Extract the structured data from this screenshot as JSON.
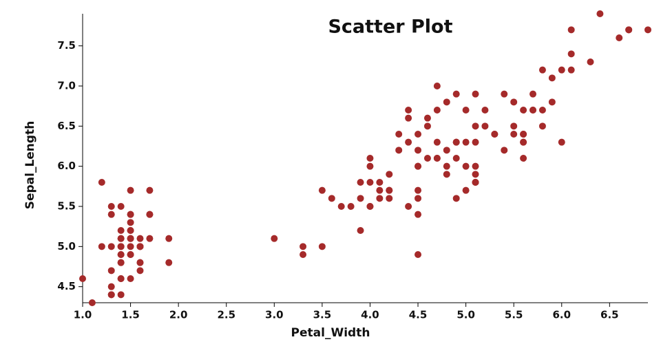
{
  "chart_data": {
    "type": "scatter",
    "title": "Scatter Plot",
    "x_label": "Petal_Width",
    "y_label": "Sepal_Length",
    "color": "#a52a2a",
    "series": [
      {
        "x": [
          1.4,
          1.4,
          1.3,
          1.5,
          1.4,
          1.7,
          1.4,
          1.5,
          1.4,
          1.5,
          1.5,
          1.6,
          1.4,
          1.1,
          1.2,
          1.5,
          1.3,
          1.4,
          1.7,
          1.5,
          1.7,
          1.5,
          1.0,
          1.7,
          1.9,
          1.6,
          1.6,
          1.5,
          1.4,
          1.6,
          1.6,
          1.5,
          1.5,
          1.4,
          1.5,
          1.2,
          1.3,
          1.4,
          1.3,
          1.5,
          1.3,
          1.3,
          1.3,
          1.6,
          1.9,
          1.4,
          1.6,
          1.4,
          1.5,
          1.4,
          4.7,
          4.5,
          4.9,
          4.0,
          4.6,
          4.5,
          4.7,
          3.3,
          4.6,
          3.9,
          3.5,
          4.2,
          4.0,
          4.7,
          3.6,
          4.4,
          4.5,
          4.1,
          4.5,
          3.9,
          4.8,
          4.0,
          4.9,
          4.7,
          4.3,
          4.4,
          4.8,
          5.0,
          4.5,
          3.5,
          3.8,
          3.7,
          3.9,
          5.1,
          4.5,
          4.5,
          4.7,
          4.4,
          4.1,
          4.0,
          4.4,
          4.6,
          4.0,
          3.3,
          4.2,
          4.2,
          4.2,
          4.3,
          3.0,
          4.1,
          6.0,
          5.1,
          5.9,
          5.6,
          5.8,
          6.6,
          4.5,
          6.3,
          5.8,
          6.1,
          5.1,
          5.3,
          5.5,
          5.0,
          5.1,
          5.3,
          5.5,
          6.7,
          6.9,
          5.0,
          5.7,
          4.9,
          6.7,
          4.9,
          5.7,
          6.0,
          4.8,
          4.9,
          5.6,
          5.8,
          6.1,
          6.4,
          5.6,
          5.1,
          5.6,
          6.1,
          5.6,
          5.5,
          4.8,
          5.4,
          5.6,
          5.1,
          5.1,
          5.9,
          5.7,
          5.2,
          5.0,
          5.2,
          5.4,
          5.1
        ],
        "values": [
          5.1,
          4.9,
          4.7,
          4.6,
          5.0,
          5.4,
          4.6,
          5.0,
          4.4,
          4.9,
          5.4,
          4.8,
          4.8,
          4.3,
          5.8,
          5.7,
          5.4,
          5.1,
          5.7,
          5.1,
          5.4,
          5.1,
          4.6,
          5.1,
          4.8,
          5.0,
          5.0,
          5.2,
          5.2,
          4.7,
          4.8,
          5.4,
          5.2,
          5.5,
          4.9,
          5.0,
          5.5,
          4.9,
          4.4,
          5.1,
          5.0,
          4.5,
          4.4,
          5.0,
          5.1,
          4.8,
          5.1,
          4.6,
          5.3,
          5.0,
          7.0,
          6.4,
          6.9,
          5.5,
          6.5,
          5.7,
          6.3,
          4.9,
          6.6,
          5.2,
          5.0,
          5.9,
          6.0,
          6.1,
          5.6,
          6.7,
          5.6,
          5.8,
          6.2,
          5.6,
          5.9,
          6.1,
          6.3,
          6.1,
          6.4,
          6.6,
          6.8,
          6.7,
          6.0,
          5.7,
          5.5,
          5.5,
          5.8,
          6.0,
          5.4,
          6.0,
          6.7,
          6.3,
          5.6,
          5.5,
          5.5,
          6.1,
          5.8,
          5.0,
          5.6,
          5.7,
          5.7,
          6.2,
          5.1,
          5.7,
          6.3,
          5.8,
          7.1,
          6.3,
          6.5,
          7.6,
          4.9,
          7.3,
          6.7,
          7.2,
          6.5,
          6.4,
          6.8,
          5.7,
          5.8,
          6.4,
          6.5,
          7.7,
          7.7,
          6.0,
          6.9,
          5.6,
          7.7,
          6.3,
          6.7,
          7.2,
          6.2,
          6.1,
          6.4,
          7.2,
          7.4,
          7.9,
          6.4,
          6.3,
          6.1,
          7.7,
          6.3,
          6.4,
          6.0,
          6.9,
          6.7,
          6.9,
          5.8,
          6.8,
          6.7,
          6.7,
          6.3,
          6.5,
          6.2,
          5.9
        ]
      }
    ],
    "xlim": [
      1.0,
      6.9
    ],
    "ylim": [
      4.3,
      7.9
    ],
    "xticks": [
      {
        "value": 1,
        "label": "1.0"
      },
      1.5,
      {
        "value": 2,
        "label": "2.0"
      },
      2.5,
      {
        "value": 3,
        "label": "3.0"
      },
      3.5,
      {
        "value": 4,
        "label": "4.0"
      },
      4.5,
      {
        "value": 5,
        "label": "5.0"
      },
      5.5,
      {
        "value": 6,
        "label": "6.0"
      },
      6.5
    ],
    "yticks": [
      4.5,
      {
        "value": 5,
        "label": "5.0"
      },
      5.5,
      {
        "value": 6,
        "label": "6.0"
      },
      6.5,
      {
        "value": 7,
        "label": "7.0"
      },
      7.5
    ]
  }
}
